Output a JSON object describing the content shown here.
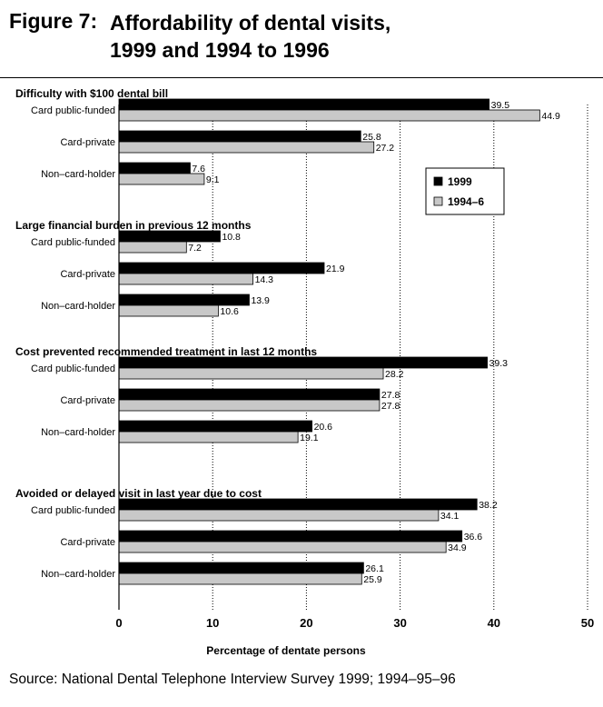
{
  "figure": {
    "label": "Figure 7:",
    "title_lines": [
      "Affordability of dental visits,",
      "1999 and 1994 to 1996"
    ]
  },
  "source": "Source: National Dental Telephone Interview Survey 1999; 1994–95–96",
  "colors": {
    "series_1999": "#000000",
    "series_1994_6": "#c8c8c8"
  },
  "chart_data": {
    "type": "bar",
    "orientation": "horizontal",
    "xlabel": "Percentage of dentate persons",
    "xlim": [
      0,
      50
    ],
    "xticks": [
      0,
      10,
      20,
      30,
      40,
      50
    ],
    "grid": "vertical dotted",
    "legend_position": "right",
    "categories": [
      "Card public-funded",
      "Card-private",
      "Non–card-holder"
    ],
    "series": [
      {
        "name": "1999"
      },
      {
        "name": "1994–6"
      }
    ],
    "panels": [
      {
        "title": "Difficulty with $100 dental bill",
        "values": [
          [
            39.5,
            44.9
          ],
          [
            25.8,
            27.2
          ],
          [
            7.6,
            9.1
          ]
        ]
      },
      {
        "title": "Large financial burden in previous 12 months",
        "values": [
          [
            10.8,
            7.2
          ],
          [
            21.9,
            14.3
          ],
          [
            13.9,
            10.6
          ]
        ]
      },
      {
        "title": "Cost prevented recommended treatment in last 12 months",
        "values": [
          [
            39.3,
            28.2
          ],
          [
            27.8,
            27.8
          ],
          [
            20.6,
            19.1
          ]
        ]
      },
      {
        "title": "Avoided or delayed visit in last year due to cost",
        "values": [
          [
            38.2,
            34.1
          ],
          [
            36.6,
            34.9
          ],
          [
            26.1,
            25.9
          ]
        ]
      }
    ]
  }
}
